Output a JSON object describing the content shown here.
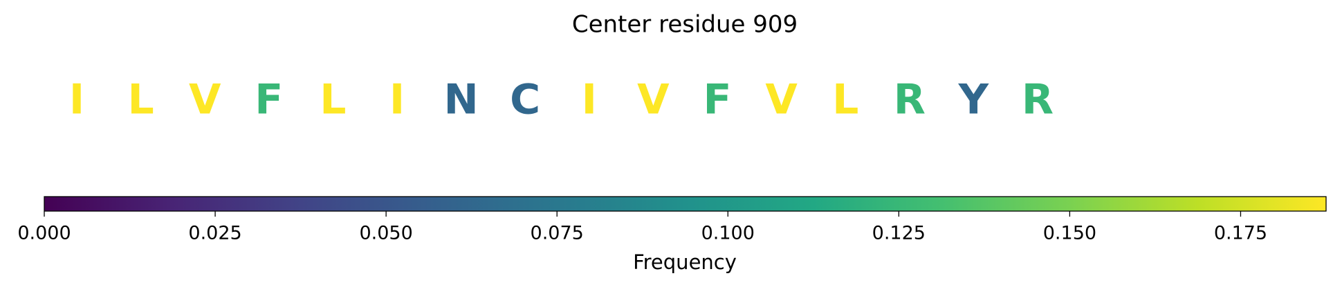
{
  "chart_data": {
    "type": "residue-colorbar",
    "title": "Center residue 909",
    "categories": [
      "I",
      "L",
      "V",
      "F",
      "L",
      "I",
      "N",
      "C",
      "I",
      "V",
      "F",
      "V",
      "L",
      "R",
      "Y",
      "R"
    ],
    "values": [
      0.1875,
      0.1875,
      0.1875,
      0.125,
      0.1875,
      0.1875,
      0.0625,
      0.0625,
      0.1875,
      0.1875,
      0.125,
      0.1875,
      0.1875,
      0.125,
      0.0625,
      0.125
    ],
    "colormap": "viridis",
    "xlabel": "Frequency",
    "xlim": [
      0,
      0.1875
    ],
    "xticks": [
      {
        "value": 0,
        "label": "0.000"
      },
      {
        "value": 0.025,
        "label": "0.025"
      },
      {
        "value": 0.05,
        "label": "0.050"
      },
      {
        "value": 0.075,
        "label": "0.075"
      },
      {
        "value": 0.1,
        "label": "0.100"
      },
      {
        "value": 0.125,
        "label": "0.125"
      },
      {
        "value": 0.15,
        "label": "0.150"
      },
      {
        "value": 0.175,
        "label": "0.175"
      }
    ]
  }
}
